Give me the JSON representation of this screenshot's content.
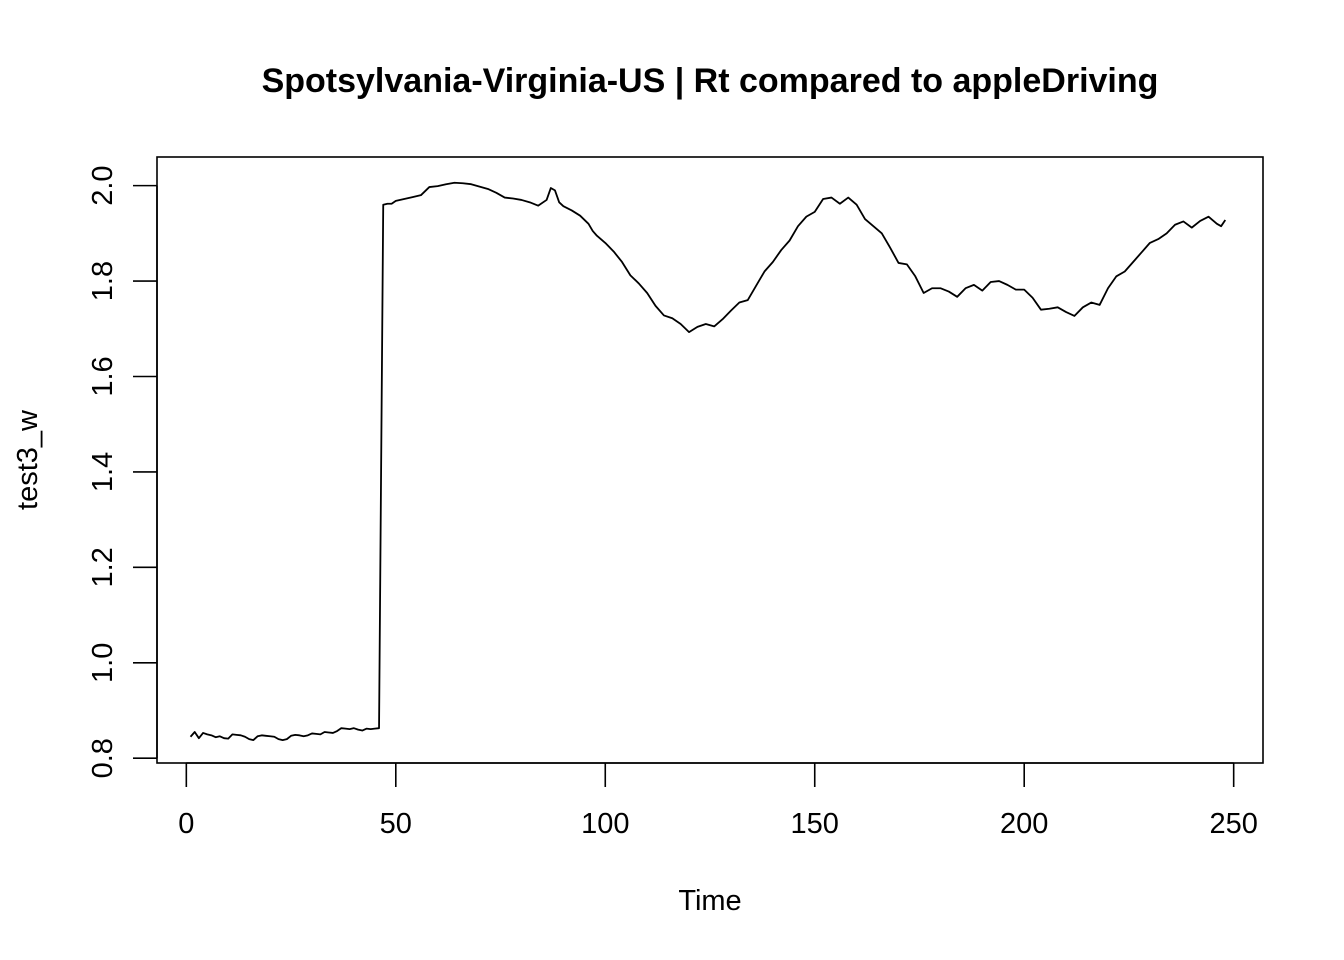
{
  "chart_data": {
    "type": "line",
    "title": "Spotsylvania-Virginia-US | Rt compared to appleDriving",
    "xlabel": "Time",
    "ylabel": "test3_w",
    "xlim": [
      -7,
      257
    ],
    "ylim": [
      0.79,
      2.06
    ],
    "x_ticks": [
      0,
      50,
      100,
      150,
      200,
      250
    ],
    "y_ticks": [
      0.8,
      1.0,
      1.2,
      1.4,
      1.6,
      1.8,
      2.0
    ],
    "x_tick_labels": [
      "0",
      "50",
      "100",
      "150",
      "200",
      "250"
    ],
    "y_tick_labels": [
      "0.8",
      "1.0",
      "1.2",
      "1.4",
      "1.6",
      "1.8",
      "2.0"
    ],
    "grid": false,
    "legend": "none",
    "series": [
      {
        "color": "#000000",
        "points": [
          [
            1,
            0.845
          ],
          [
            2,
            0.855
          ],
          [
            3,
            0.842
          ],
          [
            4,
            0.853
          ],
          [
            5,
            0.85
          ],
          [
            6,
            0.848
          ],
          [
            7,
            0.844
          ],
          [
            8,
            0.846
          ],
          [
            9,
            0.842
          ],
          [
            10,
            0.841
          ],
          [
            11,
            0.85
          ],
          [
            12,
            0.849
          ],
          [
            13,
            0.848
          ],
          [
            14,
            0.845
          ],
          [
            15,
            0.84
          ],
          [
            16,
            0.838
          ],
          [
            17,
            0.846
          ],
          [
            18,
            0.848
          ],
          [
            19,
            0.847
          ],
          [
            20,
            0.846
          ],
          [
            21,
            0.845
          ],
          [
            22,
            0.84
          ],
          [
            23,
            0.838
          ],
          [
            24,
            0.84
          ],
          [
            25,
            0.847
          ],
          [
            26,
            0.849
          ],
          [
            27,
            0.848
          ],
          [
            28,
            0.846
          ],
          [
            29,
            0.848
          ],
          [
            30,
            0.852
          ],
          [
            31,
            0.851
          ],
          [
            32,
            0.85
          ],
          [
            33,
            0.855
          ],
          [
            34,
            0.854
          ],
          [
            35,
            0.853
          ],
          [
            36,
            0.857
          ],
          [
            37,
            0.863
          ],
          [
            38,
            0.862
          ],
          [
            39,
            0.861
          ],
          [
            40,
            0.863
          ],
          [
            41,
            0.86
          ],
          [
            42,
            0.858
          ],
          [
            43,
            0.862
          ],
          [
            44,
            0.861
          ],
          [
            45,
            0.862
          ],
          [
            46,
            0.863
          ],
          [
            47,
            1.96
          ],
          [
            48,
            1.962
          ],
          [
            49,
            1.962
          ],
          [
            50,
            1.968
          ],
          [
            52,
            1.972
          ],
          [
            54,
            1.976
          ],
          [
            56,
            1.98
          ],
          [
            58,
            1.997
          ],
          [
            60,
            1.999
          ],
          [
            62,
            2.003
          ],
          [
            64,
            2.006
          ],
          [
            66,
            2.005
          ],
          [
            68,
            2.003
          ],
          [
            70,
            1.998
          ],
          [
            72,
            1.993
          ],
          [
            74,
            1.985
          ],
          [
            76,
            1.975
          ],
          [
            78,
            1.973
          ],
          [
            80,
            1.97
          ],
          [
            82,
            1.965
          ],
          [
            84,
            1.958
          ],
          [
            86,
            1.97
          ],
          [
            87,
            1.995
          ],
          [
            88,
            1.99
          ],
          [
            89,
            1.965
          ],
          [
            90,
            1.957
          ],
          [
            92,
            1.948
          ],
          [
            94,
            1.937
          ],
          [
            96,
            1.92
          ],
          [
            97,
            1.905
          ],
          [
            98,
            1.895
          ],
          [
            100,
            1.88
          ],
          [
            102,
            1.862
          ],
          [
            104,
            1.84
          ],
          [
            106,
            1.812
          ],
          [
            108,
            1.795
          ],
          [
            110,
            1.775
          ],
          [
            112,
            1.748
          ],
          [
            114,
            1.728
          ],
          [
            116,
            1.722
          ],
          [
            118,
            1.71
          ],
          [
            120,
            1.693
          ],
          [
            122,
            1.704
          ],
          [
            124,
            1.71
          ],
          [
            126,
            1.705
          ],
          [
            128,
            1.72
          ],
          [
            130,
            1.738
          ],
          [
            132,
            1.755
          ],
          [
            134,
            1.76
          ],
          [
            136,
            1.79
          ],
          [
            138,
            1.82
          ],
          [
            140,
            1.84
          ],
          [
            142,
            1.865
          ],
          [
            144,
            1.885
          ],
          [
            146,
            1.915
          ],
          [
            148,
            1.935
          ],
          [
            150,
            1.945
          ],
          [
            152,
            1.972
          ],
          [
            154,
            1.975
          ],
          [
            156,
            1.962
          ],
          [
            158,
            1.975
          ],
          [
            160,
            1.96
          ],
          [
            162,
            1.93
          ],
          [
            164,
            1.915
          ],
          [
            166,
            1.9
          ],
          [
            168,
            1.87
          ],
          [
            170,
            1.838
          ],
          [
            172,
            1.835
          ],
          [
            174,
            1.81
          ],
          [
            176,
            1.775
          ],
          [
            178,
            1.785
          ],
          [
            180,
            1.785
          ],
          [
            182,
            1.778
          ],
          [
            184,
            1.767
          ],
          [
            186,
            1.785
          ],
          [
            188,
            1.792
          ],
          [
            190,
            1.78
          ],
          [
            192,
            1.798
          ],
          [
            194,
            1.8
          ],
          [
            196,
            1.792
          ],
          [
            198,
            1.782
          ],
          [
            200,
            1.782
          ],
          [
            202,
            1.765
          ],
          [
            204,
            1.74
          ],
          [
            206,
            1.742
          ],
          [
            208,
            1.745
          ],
          [
            210,
            1.735
          ],
          [
            212,
            1.727
          ],
          [
            214,
            1.745
          ],
          [
            216,
            1.755
          ],
          [
            218,
            1.75
          ],
          [
            220,
            1.785
          ],
          [
            222,
            1.81
          ],
          [
            224,
            1.82
          ],
          [
            226,
            1.84
          ],
          [
            228,
            1.86
          ],
          [
            230,
            1.88
          ],
          [
            232,
            1.888
          ],
          [
            234,
            1.9
          ],
          [
            236,
            1.918
          ],
          [
            238,
            1.925
          ],
          [
            240,
            1.912
          ],
          [
            242,
            1.926
          ],
          [
            244,
            1.935
          ],
          [
            246,
            1.92
          ],
          [
            247,
            1.915
          ],
          [
            248,
            1.928
          ]
        ]
      }
    ]
  }
}
